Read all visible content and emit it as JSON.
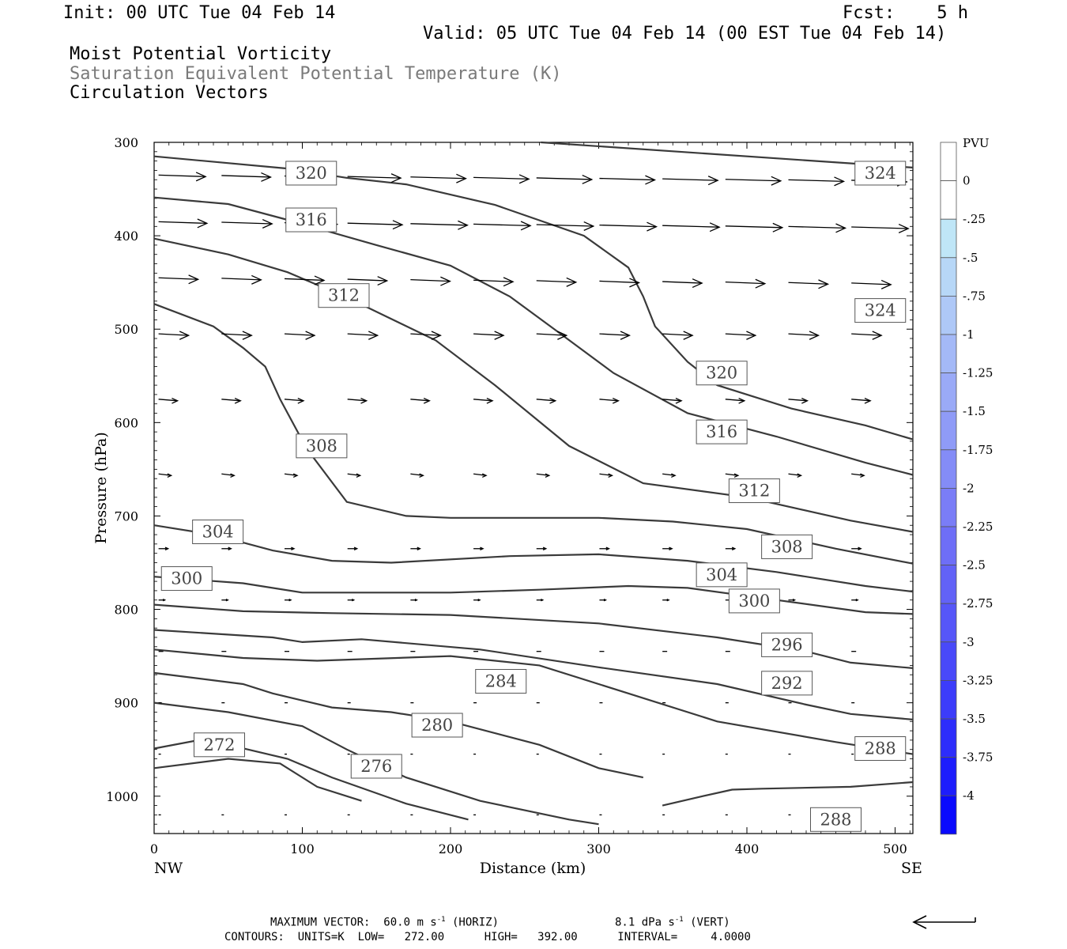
{
  "header": {
    "init": "Init: 00 UTC Tue 04 Feb 14",
    "fcst": "Fcst:    5 h",
    "valid": "Valid: 05 UTC Tue 04 Feb 14 (00 EST Tue 04 Feb 14)",
    "field1": "Moist Potential Vorticity",
    "field2": "Saturation Equivalent Potential Temperature (K)",
    "field3": "Circulation Vectors"
  },
  "footer": {
    "max_vector_label": "MAXIMUM VECTOR:",
    "horiz_value": "60.0 m s",
    "horiz_unit": " (HORIZ)",
    "vert_value": "8.1 dPa s",
    "vert_unit": " (VERT)",
    "exponent": "-1",
    "contours_line": "CONTOURS:  UNITS=K  LOW=   272.00      HIGH=   392.00      INTERVAL=     4.0000"
  },
  "colors": {
    "contour": "#3a3a3a",
    "colorbar_light": "#bfe6f7",
    "colorbar_dark": "#0000ff"
  },
  "chart_data": {
    "type": "line",
    "subtype": "vertical cross-section contour plot",
    "xlabel": "Distance (km)",
    "ylabel": "Pressure (hPa)",
    "x_ticks": [
      "0",
      "100",
      "200",
      "300",
      "400",
      "500"
    ],
    "y_ticks": [
      "300",
      "400",
      "500",
      "600",
      "700",
      "800",
      "900",
      "1000"
    ],
    "endpoint_left": "NW",
    "endpoint_right": "SE",
    "xlim": [
      0,
      512
    ],
    "ylim": [
      1040,
      300
    ],
    "colorbar": {
      "title": "PVU",
      "labels": [
        "0",
        "-.25",
        "-.5",
        "-.75",
        "-1",
        "-1.25",
        "-1.5",
        "-1.75",
        "-2",
        "-2.25",
        "-2.5",
        "-2.75",
        "-3",
        "-3.25",
        "-3.5",
        "-3.75",
        "-4"
      ]
    },
    "contours": [
      {
        "level": 324,
        "points": [
          [
            261,
            300
          ],
          [
            512,
            327
          ]
        ]
      },
      {
        "level": 320,
        "points": [
          [
            0,
            315
          ],
          [
            90,
            328
          ],
          [
            130,
            338
          ],
          [
            170,
            345
          ],
          [
            230,
            367
          ],
          [
            290,
            400
          ],
          [
            320,
            434
          ],
          [
            330,
            465
          ],
          [
            338,
            497
          ],
          [
            360,
            535
          ],
          [
            380,
            560
          ],
          [
            430,
            585
          ],
          [
            480,
            603
          ],
          [
            512,
            618
          ]
        ]
      },
      {
        "level": 316,
        "points": [
          [
            0,
            359
          ],
          [
            50,
            366
          ],
          [
            90,
            383
          ],
          [
            150,
            410
          ],
          [
            200,
            432
          ],
          [
            240,
            465
          ],
          [
            270,
            500
          ],
          [
            310,
            547
          ],
          [
            360,
            590
          ],
          [
            420,
            615
          ],
          [
            480,
            643
          ],
          [
            512,
            656
          ]
        ]
      },
      {
        "level": 312,
        "points": [
          [
            0,
            403
          ],
          [
            50,
            420
          ],
          [
            90,
            439
          ],
          [
            130,
            466
          ],
          [
            190,
            512
          ],
          [
            230,
            560
          ],
          [
            280,
            625
          ],
          [
            330,
            665
          ],
          [
            400,
            680
          ],
          [
            470,
            705
          ],
          [
            512,
            717
          ]
        ]
      },
      {
        "level": 308,
        "points": [
          [
            0,
            473
          ],
          [
            40,
            497
          ],
          [
            60,
            520
          ],
          [
            75,
            540
          ],
          [
            85,
            575
          ],
          [
            103,
            628
          ],
          [
            130,
            685
          ],
          [
            170,
            700
          ],
          [
            200,
            702
          ],
          [
            300,
            702
          ],
          [
            350,
            706
          ],
          [
            400,
            714
          ],
          [
            460,
            735
          ],
          [
            512,
            751
          ]
        ]
      },
      {
        "level": 304,
        "points": [
          [
            0,
            710
          ],
          [
            40,
            720
          ],
          [
            80,
            737
          ],
          [
            120,
            748
          ],
          [
            160,
            750
          ],
          [
            240,
            743
          ],
          [
            300,
            741
          ],
          [
            360,
            748
          ],
          [
            420,
            760
          ],
          [
            480,
            775
          ],
          [
            512,
            781
          ]
        ]
      },
      {
        "level": 300,
        "points": [
          [
            0,
            765
          ],
          [
            60,
            772
          ],
          [
            100,
            782
          ],
          [
            200,
            782
          ],
          [
            260,
            779
          ],
          [
            320,
            775
          ],
          [
            360,
            777
          ],
          [
            420,
            790
          ],
          [
            480,
            803
          ],
          [
            512,
            805
          ]
        ]
      },
      {
        "level": 296,
        "points": [
          [
            0,
            795
          ],
          [
            60,
            802
          ],
          [
            120,
            804
          ],
          [
            200,
            806
          ],
          [
            300,
            815
          ],
          [
            380,
            830
          ],
          [
            440,
            845
          ],
          [
            470,
            857
          ],
          [
            512,
            863
          ]
        ]
      },
      {
        "level": 292,
        "points": [
          [
            0,
            822
          ],
          [
            80,
            830
          ],
          [
            100,
            835
          ],
          [
            140,
            832
          ],
          [
            220,
            843
          ],
          [
            300,
            862
          ],
          [
            380,
            880
          ],
          [
            440,
            902
          ],
          [
            470,
            912
          ],
          [
            512,
            918
          ]
        ]
      },
      {
        "level": 288,
        "points": [
          [
            0,
            843
          ],
          [
            60,
            852
          ],
          [
            110,
            855
          ],
          [
            200,
            850
          ],
          [
            260,
            860
          ],
          [
            320,
            890
          ],
          [
            380,
            920
          ],
          [
            460,
            942
          ],
          [
            512,
            955
          ]
        ]
      },
      {
        "level": 284,
        "points": [
          [
            0,
            868
          ],
          [
            60,
            880
          ],
          [
            80,
            890
          ],
          [
            120,
            905
          ],
          [
            160,
            910
          ],
          [
            200,
            920
          ],
          [
            260,
            945
          ],
          [
            300,
            970
          ],
          [
            330,
            980
          ]
        ]
      },
      {
        "level": 280,
        "points": [
          [
            0,
            900
          ],
          [
            50,
            910
          ],
          [
            100,
            925
          ],
          [
            130,
            950
          ],
          [
            170,
            980
          ],
          [
            220,
            1005
          ],
          [
            280,
            1025
          ],
          [
            300,
            1030
          ]
        ]
      },
      {
        "level": 276,
        "points": [
          [
            0,
            949
          ],
          [
            30,
            940
          ],
          [
            50,
            945
          ],
          [
            90,
            960
          ],
          [
            120,
            980
          ],
          [
            170,
            1008
          ],
          [
            212,
            1025
          ]
        ]
      },
      {
        "level": 272,
        "points": [
          [
            0,
            970
          ],
          [
            50,
            960
          ],
          [
            85,
            965
          ],
          [
            110,
            990
          ],
          [
            140,
            1005
          ]
        ]
      },
      {
        "level": 288,
        "points": [
          [
            343,
            1010
          ],
          [
            370,
            1000
          ],
          [
            390,
            993
          ],
          [
            410,
            992
          ],
          [
            470,
            990
          ],
          [
            512,
            985
          ]
        ]
      }
    ],
    "contour_labels": [
      {
        "text": "320",
        "pos": [
          106,
          333
        ]
      },
      {
        "text": "316",
        "pos": [
          106,
          383
        ]
      },
      {
        "text": "312",
        "pos": [
          128,
          464
        ]
      },
      {
        "text": "308",
        "pos": [
          113,
          625
        ]
      },
      {
        "text": "304",
        "pos": [
          43,
          717
        ]
      },
      {
        "text": "300",
        "pos": [
          22,
          767
        ]
      },
      {
        "text": "324",
        "pos": [
          490,
          333
        ]
      },
      {
        "text": "324",
        "pos": [
          490,
          480
        ]
      },
      {
        "text": "320",
        "pos": [
          383,
          547
        ]
      },
      {
        "text": "316",
        "pos": [
          383,
          610
        ]
      },
      {
        "text": "312",
        "pos": [
          405,
          673
        ]
      },
      {
        "text": "308",
        "pos": [
          427,
          733
        ]
      },
      {
        "text": "304",
        "pos": [
          383,
          763
        ]
      },
      {
        "text": "300",
        "pos": [
          405,
          791
        ]
      },
      {
        "text": "296",
        "pos": [
          427,
          838
        ]
      },
      {
        "text": "292",
        "pos": [
          427,
          879
        ]
      },
      {
        "text": "288",
        "pos": [
          490,
          949
        ]
      },
      {
        "text": "288",
        "pos": [
          460,
          1025
        ]
      },
      {
        "text": "284",
        "pos": [
          234,
          877
        ]
      },
      {
        "text": "280",
        "pos": [
          191,
          924
        ]
      },
      {
        "text": "276",
        "pos": [
          150,
          968
        ]
      },
      {
        "text": "272",
        "pos": [
          44,
          945
        ]
      }
    ]
  }
}
